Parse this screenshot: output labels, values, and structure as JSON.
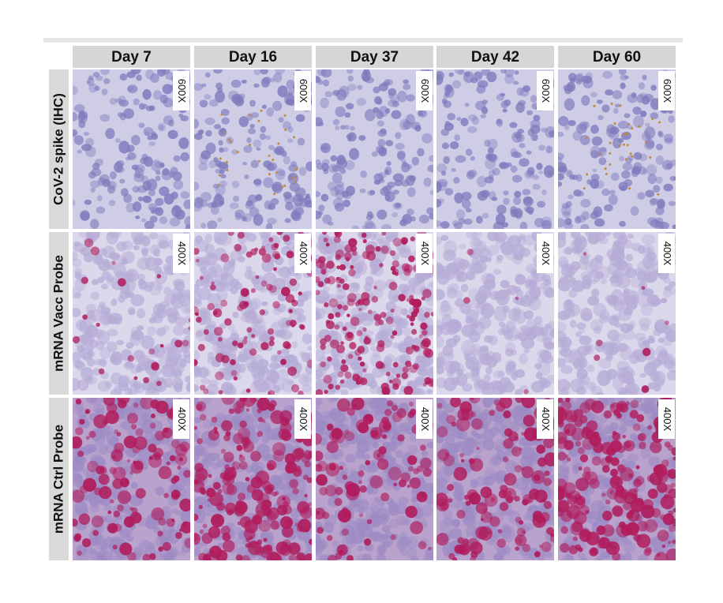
{
  "columns": [
    "Day 7",
    "Day 16",
    "Day 37",
    "Day 42",
    "Day 60"
  ],
  "rows": [
    {
      "label": "CoV-2 spike (IHC)",
      "magnification": [
        "600X",
        "600X",
        "600X",
        "600X",
        "600X"
      ]
    },
    {
      "label": "mRNA Vacc Probe",
      "magnification": [
        "400X",
        "400X",
        "400X",
        "400X",
        "400X"
      ]
    },
    {
      "label": "mRNA Ctrl Probe",
      "magnification": [
        "400X",
        "400X",
        "400X",
        "400X",
        "400X"
      ]
    }
  ]
}
